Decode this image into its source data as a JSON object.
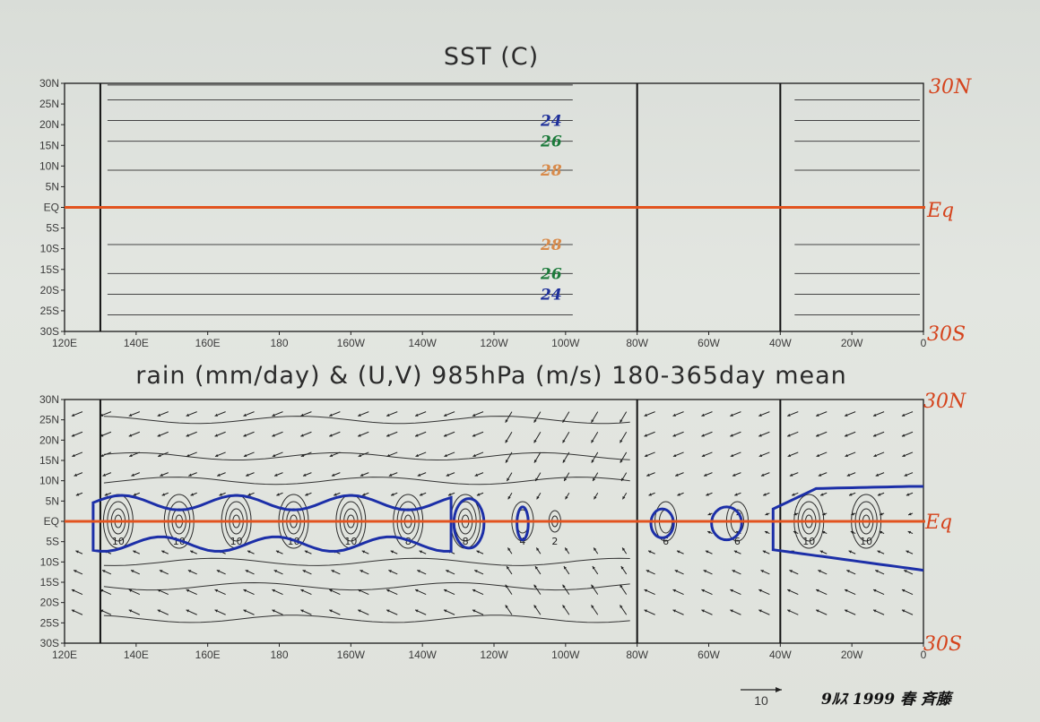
{
  "chart_data": [
    {
      "type": "line",
      "title": "SST (C)",
      "x_ticks": [
        "120E",
        "140E",
        "160E",
        "180",
        "160W",
        "140W",
        "120W",
        "100W",
        "80W",
        "60W",
        "40W",
        "20W",
        "0"
      ],
      "y_ticks": [
        "30N",
        "25N",
        "20N",
        "15N",
        "10N",
        "5N",
        "EQ",
        "5S",
        "10S",
        "15S",
        "20S",
        "25S",
        "30S"
      ],
      "xlim": [
        120,
        360
      ],
      "ylim": [
        -30,
        30
      ],
      "contours": [
        {
          "value": "24",
          "lat": 21,
          "color": "#1e2f9a"
        },
        {
          "value": "26",
          "lat": 16,
          "color": "#1b7a3a"
        },
        {
          "value": "28",
          "lat": 9,
          "color": "#d88a4a"
        },
        {
          "value": "28",
          "lat": -9,
          "color": "#d88a4a"
        },
        {
          "value": "26",
          "lat": -16,
          "color": "#1b7a3a"
        },
        {
          "value": "24",
          "lat": -21,
          "color": "#1e2f9a"
        }
      ],
      "extra_lines_lat": [
        26,
        -26
      ],
      "continents_lon": [
        130,
        280,
        320
      ],
      "annotations": {
        "north": "30N",
        "equator": "Eq",
        "south": "30S"
      }
    },
    {
      "type": "line",
      "title": "rain (mm/day) & (U,V) 985hPa (m/s) 180-365day mean",
      "x_ticks": [
        "120E",
        "140E",
        "160E",
        "180",
        "160W",
        "140W",
        "120W",
        "100W",
        "80W",
        "60W",
        "40W",
        "20W",
        "0"
      ],
      "y_ticks": [
        "30N",
        "25N",
        "20N",
        "15N",
        "10N",
        "5N",
        "EQ",
        "5S",
        "10S",
        "15S",
        "20S",
        "25S",
        "30S"
      ],
      "xlim": [
        120,
        360
      ],
      "ylim": [
        -30,
        30
      ],
      "rain_cells": [
        {
          "lon": 135,
          "label": "10"
        },
        {
          "lon": 152,
          "label": "10"
        },
        {
          "lon": 168,
          "label": "10"
        },
        {
          "lon": 184,
          "label": "10"
        },
        {
          "lon": 200,
          "label": "10"
        },
        {
          "lon": 216,
          "label": "8"
        },
        {
          "lon": 232,
          "label": "8"
        },
        {
          "lon": 248,
          "label": "4"
        },
        {
          "lon": 257,
          "label": "2"
        },
        {
          "lon": 288,
          "label": "6"
        },
        {
          "lon": 308,
          "label": "6"
        },
        {
          "lon": 328,
          "label": "10"
        },
        {
          "lon": 344,
          "label": "10"
        }
      ],
      "contour_labels": [
        "2",
        "4",
        "6",
        "8",
        "10"
      ],
      "vector_scale": "10",
      "annotations": {
        "north": "30N",
        "equator": "Eq",
        "south": "30S"
      }
    }
  ],
  "colors": {
    "equator": "#e2531f",
    "highlight_contour": "#1c2fa8",
    "frame": "#111111"
  },
  "signature": "9ﾙｽ 1999 春 斉藤"
}
